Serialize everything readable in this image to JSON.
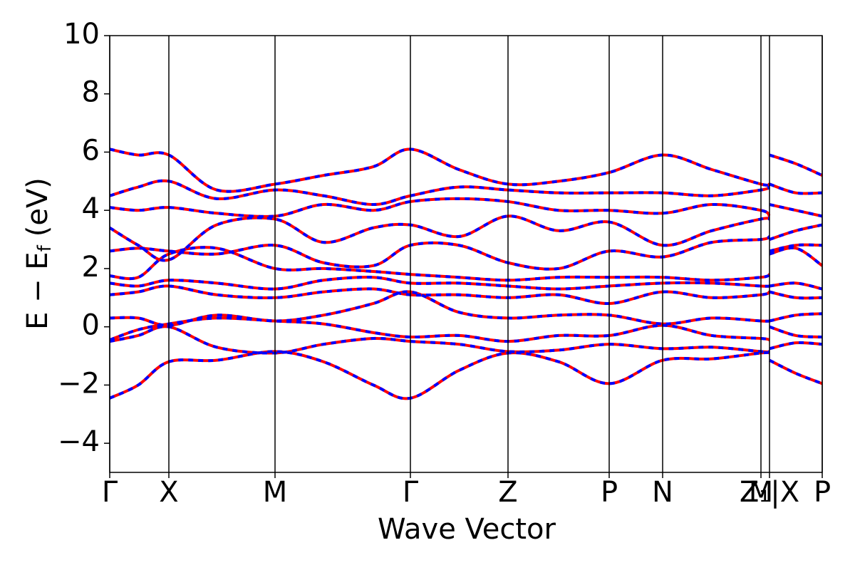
{
  "chart_data": {
    "type": "line",
    "xlabel": "Wave Vector",
    "ylabel": [
      "E − E",
      "f",
      "(eV)"
    ],
    "x": [
      0,
      0.04,
      0.083,
      0.15,
      0.232,
      0.3,
      0.37,
      0.422,
      0.49,
      0.559,
      0.63,
      0.701,
      0.776,
      0.845,
      0.914,
      0.926,
      0.926,
      0.926,
      0.963,
      1.0
    ],
    "xlim": [
      0,
      1.0
    ],
    "ylim": [
      -5,
      10
    ],
    "yticks": [
      {
        "value": -4,
        "label": "−4"
      },
      {
        "value": -2,
        "label": "−2"
      },
      0,
      2,
      4,
      6,
      8,
      10
    ],
    "xticks": [
      {
        "value": 0,
        "label": "Γ"
      },
      {
        "value": 0.083,
        "label": "X"
      },
      {
        "value": 0.232,
        "label": "M"
      },
      {
        "value": 0.422,
        "label": "Γ"
      },
      {
        "value": 0.559,
        "label": "Z"
      },
      {
        "value": 0.701,
        "label": "P"
      },
      {
        "value": 0.776,
        "label": "N"
      },
      {
        "value": 0.914,
        "label": "M"
      },
      {
        "value": 0.926,
        "label": "Z₁|X"
      },
      {
        "value": 1.0,
        "label": "P"
      }
    ],
    "series": [
      {
        "color": "#ff0000",
        "values": [
          -2.45,
          -2.0,
          -1.2,
          -1.15,
          -0.85,
          -1.2,
          -2.0,
          -2.45,
          -1.5,
          -0.9,
          -1.2,
          -1.95,
          -1.15,
          -1.1,
          -0.9,
          -0.9,
          null,
          -1.15,
          -1.6,
          -1.95
        ]
      },
      {
        "color": "#ff0000",
        "values": [
          -0.5,
          -0.3,
          0.0,
          -0.7,
          -0.9,
          -0.6,
          -0.4,
          -0.5,
          -0.6,
          -0.85,
          -0.8,
          -0.6,
          -0.75,
          -0.7,
          -0.85,
          -0.85,
          null,
          -0.75,
          -0.55,
          -0.6
        ]
      },
      {
        "color": "#ff0000",
        "values": [
          -0.45,
          -0.1,
          0.1,
          0.3,
          0.2,
          0.1,
          -0.2,
          -0.35,
          -0.3,
          -0.5,
          -0.3,
          -0.3,
          0.05,
          -0.3,
          -0.4,
          -0.45,
          null,
          0.0,
          -0.3,
          -0.35
        ]
      },
      {
        "color": "#ff0000",
        "values": [
          0.3,
          0.3,
          0.05,
          0.4,
          0.2,
          0.4,
          0.8,
          1.2,
          0.5,
          0.3,
          0.4,
          0.4,
          0.1,
          0.3,
          0.2,
          0.2,
          null,
          0.2,
          0.4,
          0.45
        ]
      },
      {
        "color": "#ff0000",
        "values": [
          1.1,
          1.2,
          1.4,
          1.1,
          1.0,
          1.2,
          1.3,
          1.1,
          1.1,
          1.0,
          1.1,
          0.8,
          1.2,
          1.0,
          1.1,
          1.2,
          null,
          1.2,
          1.0,
          1.0
        ]
      },
      {
        "color": "#ff0000",
        "values": [
          1.5,
          1.4,
          1.6,
          1.5,
          1.3,
          1.6,
          1.7,
          1.5,
          1.5,
          1.4,
          1.3,
          1.4,
          1.5,
          1.5,
          1.4,
          1.4,
          null,
          1.4,
          1.5,
          1.3
        ]
      },
      {
        "color": "#ff0000",
        "values": [
          1.75,
          1.7,
          2.5,
          2.7,
          2.0,
          2.0,
          1.9,
          1.8,
          1.7,
          1.6,
          1.7,
          1.7,
          1.7,
          1.6,
          1.7,
          1.8,
          null,
          2.5,
          2.7,
          2.1
        ]
      },
      {
        "color": "#ff0000",
        "values": [
          2.6,
          2.7,
          2.6,
          2.5,
          2.8,
          2.2,
          2.1,
          2.8,
          2.8,
          2.2,
          2.0,
          2.6,
          2.4,
          2.9,
          3.0,
          3.1,
          null,
          2.6,
          2.8,
          2.8
        ]
      },
      {
        "color": "#ff0000",
        "values": [
          3.4,
          2.8,
          2.3,
          3.5,
          3.7,
          2.9,
          3.4,
          3.5,
          3.1,
          3.8,
          3.3,
          3.6,
          2.8,
          3.3,
          3.7,
          3.7,
          null,
          3.0,
          3.3,
          3.5
        ]
      },
      {
        "color": "#ff0000",
        "values": [
          4.1,
          4.0,
          4.1,
          3.9,
          3.8,
          4.2,
          4.0,
          4.3,
          4.4,
          4.3,
          4.0,
          4.0,
          3.9,
          4.2,
          4.0,
          3.8,
          null,
          4.2,
          4.0,
          3.8
        ]
      },
      {
        "color": "#ff0000",
        "values": [
          4.5,
          4.8,
          5.0,
          4.4,
          4.7,
          4.5,
          4.2,
          4.5,
          4.8,
          4.7,
          4.6,
          4.6,
          4.6,
          4.5,
          4.7,
          4.8,
          null,
          4.9,
          4.6,
          4.6
        ]
      },
      {
        "color": "#ff0000",
        "values": [
          6.1,
          5.9,
          5.9,
          4.7,
          4.9,
          5.2,
          5.5,
          6.1,
          5.4,
          4.9,
          5.0,
          5.3,
          5.9,
          5.4,
          4.9,
          4.9,
          null,
          5.9,
          5.6,
          5.2
        ]
      },
      {
        "color": "#0000ff",
        "dashed": true,
        "values": [
          -2.45,
          -2.0,
          -1.2,
          -1.15,
          -0.85,
          -1.2,
          -2.0,
          -2.45,
          -1.5,
          -0.9,
          -1.2,
          -1.95,
          -1.15,
          -1.1,
          -0.9,
          -0.9,
          null,
          -1.15,
          -1.6,
          -1.95
        ]
      },
      {
        "color": "#0000ff",
        "dashed": true,
        "values": [
          -0.5,
          -0.3,
          0.0,
          -0.7,
          -0.9,
          -0.6,
          -0.4,
          -0.5,
          -0.6,
          -0.85,
          -0.8,
          -0.6,
          -0.75,
          -0.7,
          -0.85,
          -0.85,
          null,
          -0.75,
          -0.55,
          -0.6
        ]
      },
      {
        "color": "#0000ff",
        "dashed": true,
        "values": [
          -0.45,
          -0.1,
          0.1,
          0.3,
          0.2,
          0.1,
          -0.2,
          -0.35,
          -0.3,
          -0.5,
          -0.3,
          -0.3,
          0.05,
          -0.3,
          -0.4,
          -0.45,
          null,
          0.0,
          -0.3,
          -0.35
        ]
      },
      {
        "color": "#0000ff",
        "dashed": true,
        "values": [
          0.3,
          0.3,
          0.05,
          0.4,
          0.2,
          0.4,
          0.8,
          1.2,
          0.5,
          0.3,
          0.4,
          0.4,
          0.1,
          0.3,
          0.2,
          0.2,
          null,
          0.2,
          0.4,
          0.45
        ]
      },
      {
        "color": "#0000ff",
        "dashed": true,
        "values": [
          1.1,
          1.2,
          1.4,
          1.1,
          1.0,
          1.2,
          1.3,
          1.1,
          1.1,
          1.0,
          1.1,
          0.8,
          1.2,
          1.0,
          1.1,
          1.2,
          null,
          1.2,
          1.0,
          1.0
        ]
      },
      {
        "color": "#0000ff",
        "dashed": true,
        "values": [
          1.5,
          1.4,
          1.6,
          1.5,
          1.3,
          1.6,
          1.7,
          1.5,
          1.5,
          1.4,
          1.3,
          1.4,
          1.5,
          1.5,
          1.4,
          1.4,
          null,
          1.4,
          1.5,
          1.3
        ]
      },
      {
        "color": "#0000ff",
        "dashed": true,
        "values": [
          1.75,
          1.7,
          2.5,
          2.7,
          2.0,
          2.0,
          1.9,
          1.8,
          1.7,
          1.6,
          1.7,
          1.7,
          1.7,
          1.6,
          1.7,
          1.8,
          null,
          2.5,
          2.7,
          2.1
        ]
      },
      {
        "color": "#0000ff",
        "dashed": true,
        "values": [
          2.6,
          2.7,
          2.6,
          2.5,
          2.8,
          2.2,
          2.1,
          2.8,
          2.8,
          2.2,
          2.0,
          2.6,
          2.4,
          2.9,
          3.0,
          3.1,
          null,
          2.6,
          2.8,
          2.8
        ]
      },
      {
        "color": "#0000ff",
        "dashed": true,
        "values": [
          3.4,
          2.8,
          2.3,
          3.5,
          3.7,
          2.9,
          3.4,
          3.5,
          3.1,
          3.8,
          3.3,
          3.6,
          2.8,
          3.3,
          3.7,
          3.7,
          null,
          3.0,
          3.3,
          3.5
        ]
      },
      {
        "color": "#0000ff",
        "dashed": true,
        "values": [
          4.1,
          4.0,
          4.1,
          3.9,
          3.8,
          4.2,
          4.0,
          4.3,
          4.4,
          4.3,
          4.0,
          4.0,
          3.9,
          4.2,
          4.0,
          3.8,
          null,
          4.2,
          4.0,
          3.8
        ]
      },
      {
        "color": "#0000ff",
        "dashed": true,
        "values": [
          4.5,
          4.8,
          5.0,
          4.4,
          4.7,
          4.5,
          4.2,
          4.5,
          4.8,
          4.7,
          4.6,
          4.6,
          4.6,
          4.5,
          4.7,
          4.8,
          null,
          4.9,
          4.6,
          4.6
        ]
      },
      {
        "color": "#0000ff",
        "dashed": true,
        "values": [
          6.1,
          5.9,
          5.9,
          4.7,
          4.9,
          5.2,
          5.5,
          6.1,
          5.4,
          4.9,
          5.0,
          5.3,
          5.9,
          5.4,
          4.9,
          4.9,
          null,
          5.9,
          5.6,
          5.2
        ]
      }
    ],
    "vlines": true
  }
}
